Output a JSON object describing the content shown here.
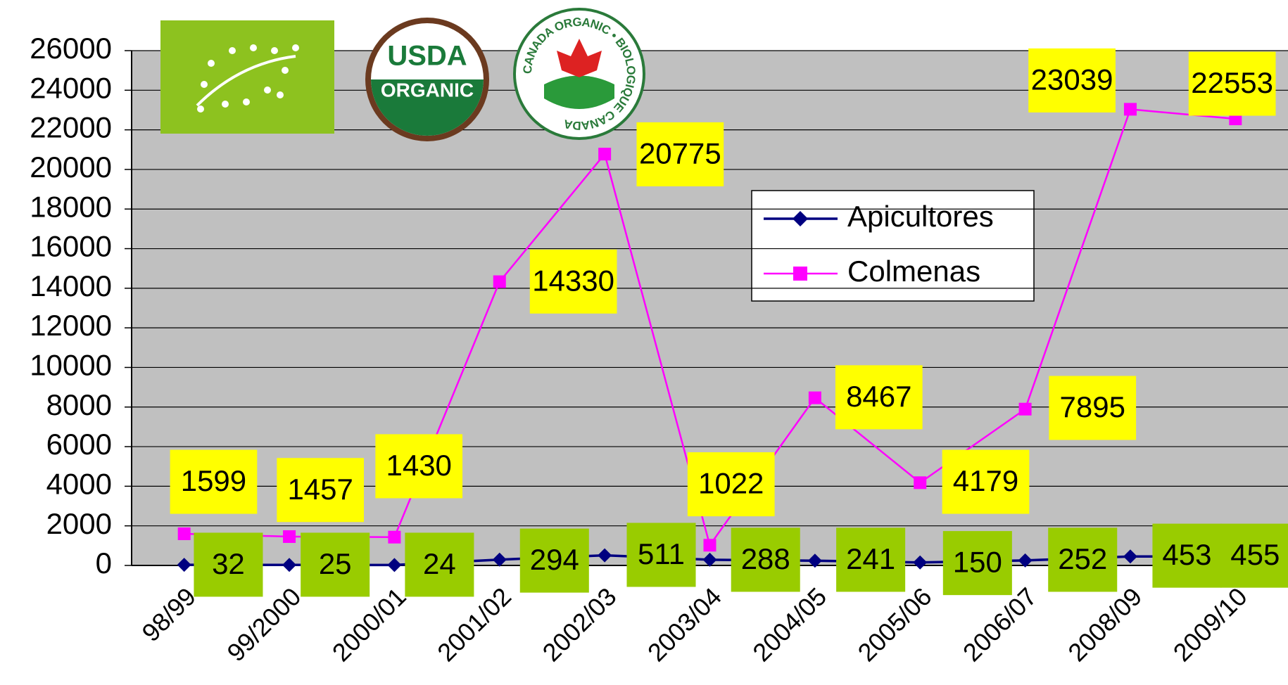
{
  "chart_data": {
    "type": "line",
    "categories": [
      "98/99",
      "99/2000",
      "2000/01",
      "2001/02",
      "2002/03",
      "2003/04",
      "2004/05",
      "2005/06",
      "2006/07",
      "2008/09",
      "2009/10"
    ],
    "series": [
      {
        "name": "Apicultores",
        "color": "#000080",
        "label_color": "#99cc00",
        "values": [
          32,
          25,
          24,
          294,
          511,
          288,
          241,
          150,
          252,
          453,
          455
        ]
      },
      {
        "name": "Colmenas",
        "color": "#ff00ff",
        "label_color": "#ffff00",
        "values": [
          1599,
          1457,
          1430,
          14330,
          20775,
          1022,
          8467,
          4179,
          7895,
          23039,
          22553
        ]
      }
    ],
    "ylim": [
      0,
      26000
    ],
    "yticks": [
      0,
      2000,
      4000,
      6000,
      8000,
      10000,
      12000,
      14000,
      16000,
      18000,
      20000,
      22000,
      24000,
      26000
    ],
    "grid": true,
    "legend": "right"
  },
  "logos": {
    "usda": [
      "USDA",
      "ORGANIC"
    ],
    "canada": "CANADA ORGANIC • BIOLOGIQUE CANADA"
  }
}
